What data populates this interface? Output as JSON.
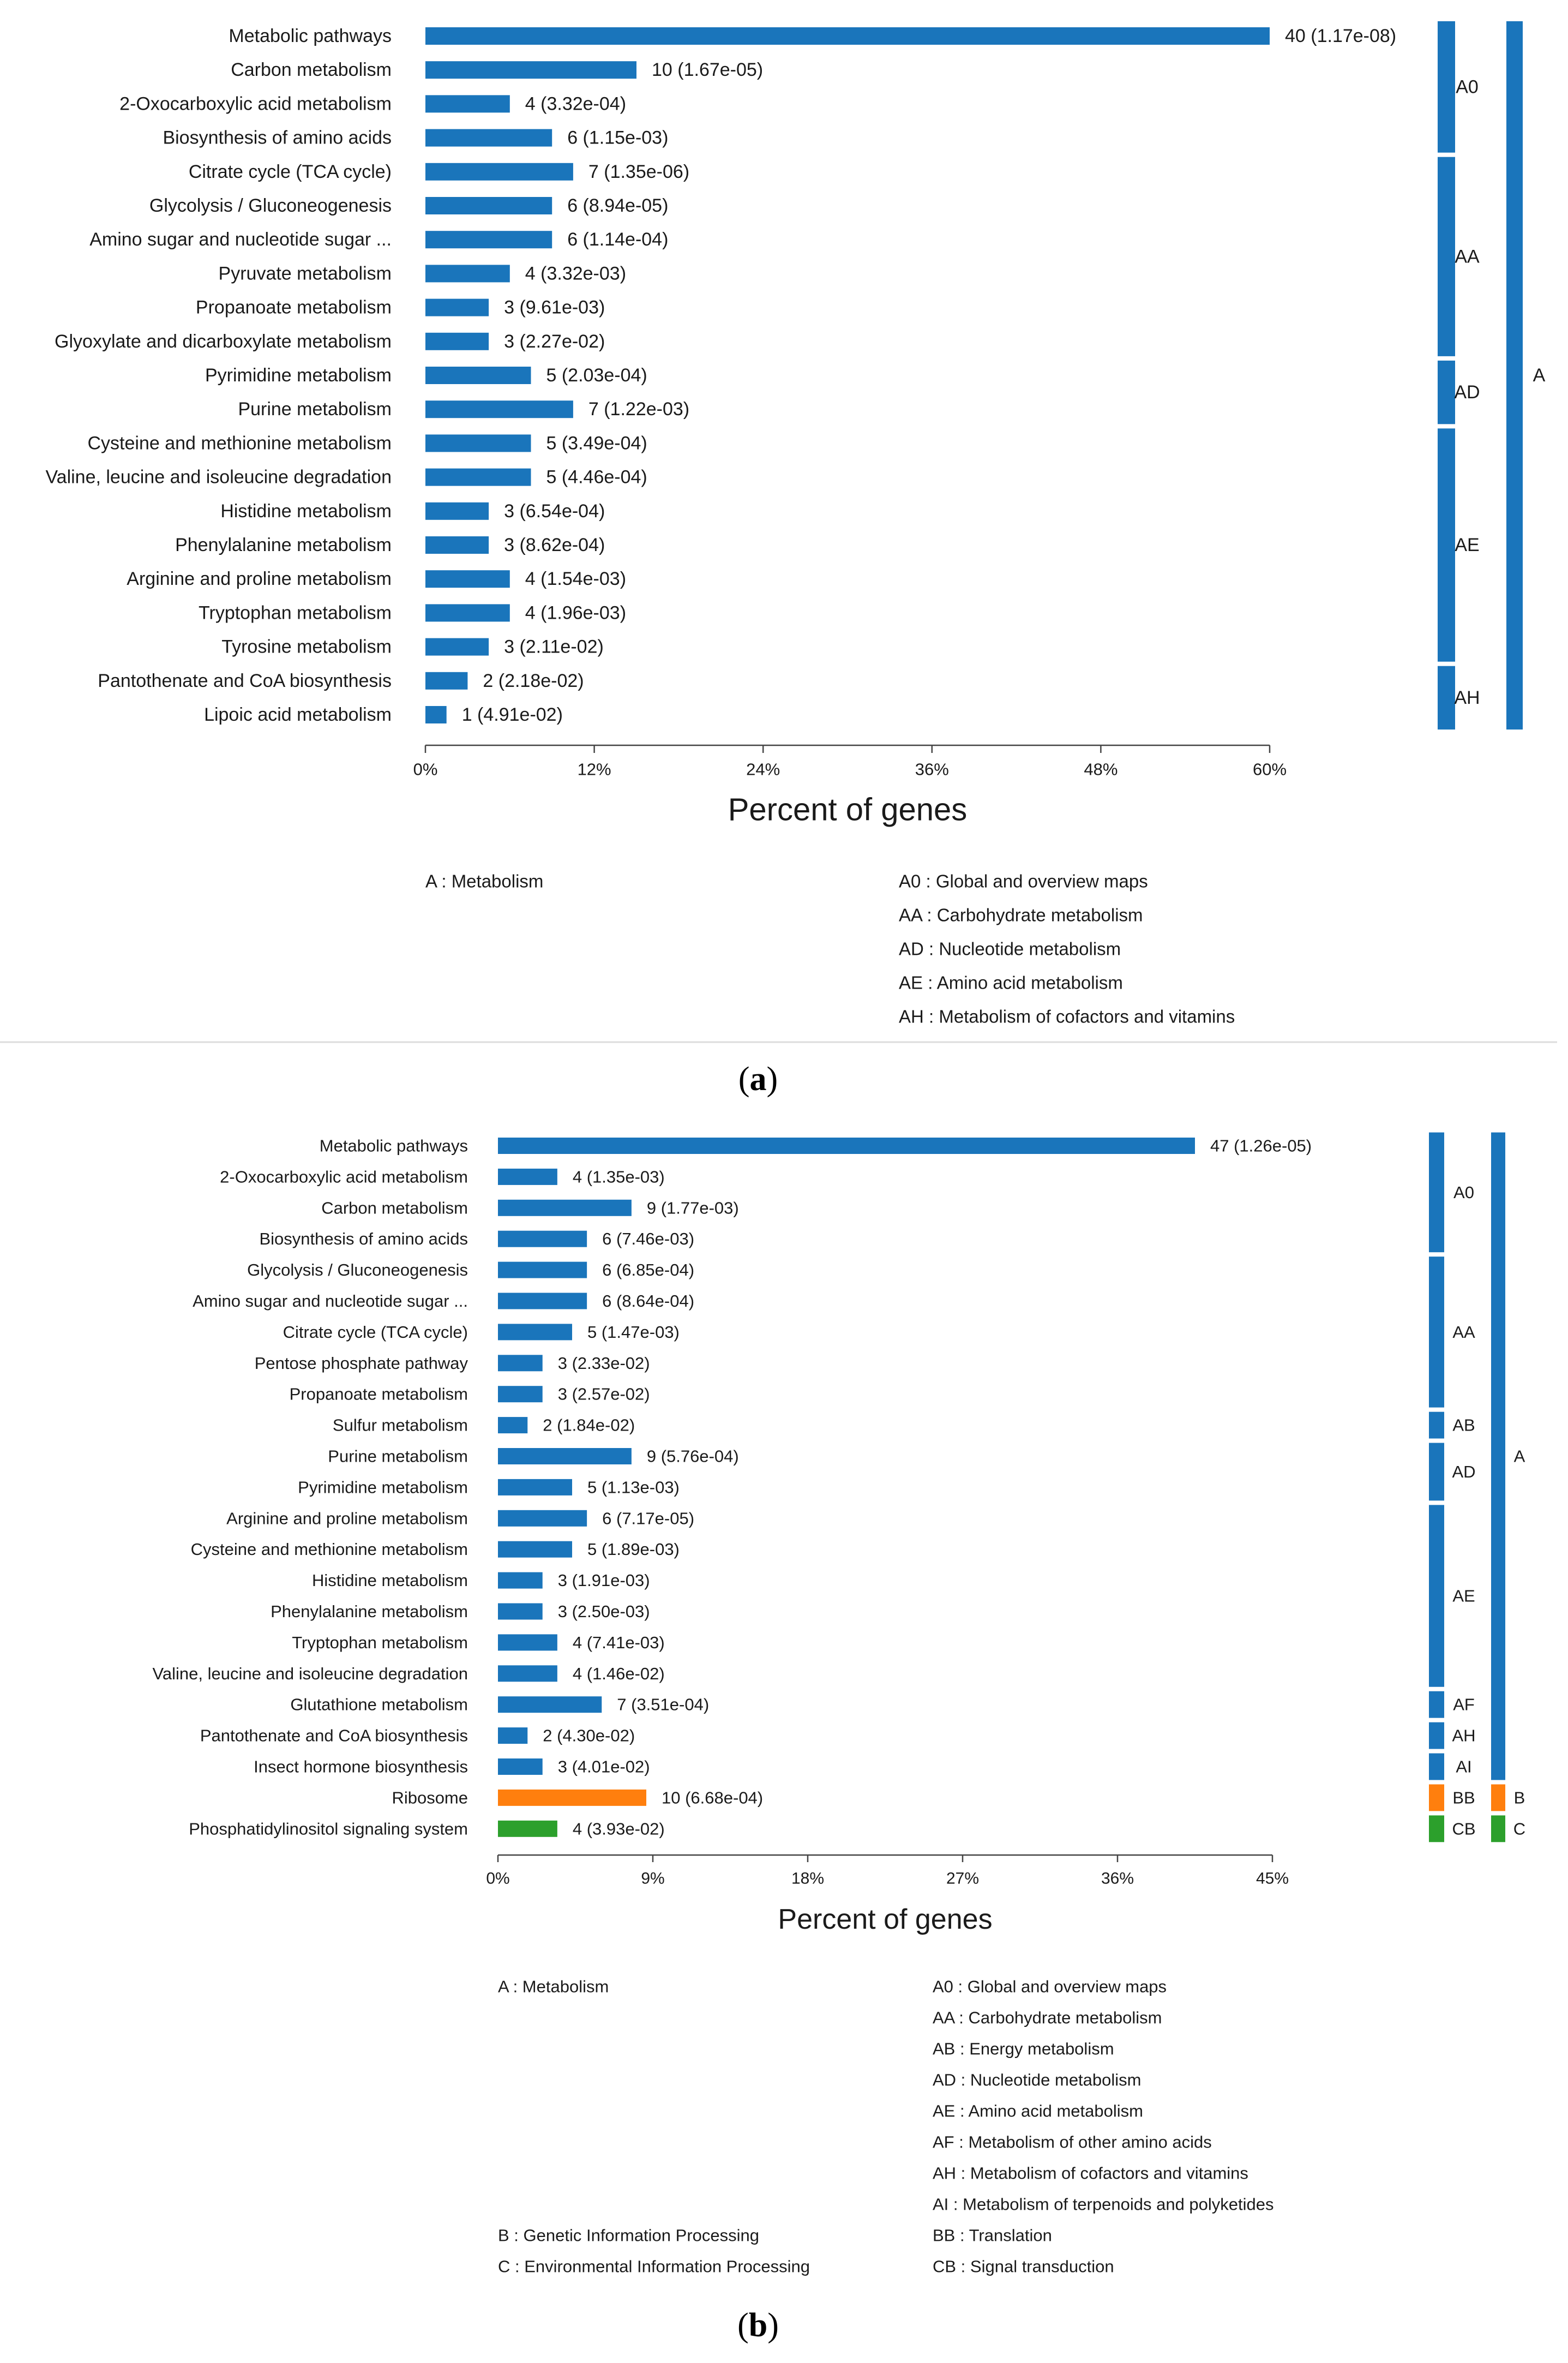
{
  "colors": {
    "blue": "#1a75bb",
    "orange": "#ff7f0e",
    "green": "#2ca02c",
    "text": "#1a1a1a",
    "axis": "#444444",
    "divider": "#dcdcdc"
  },
  "panels": [
    {
      "label": "(a)",
      "label_letter": "a"
    },
    {
      "label": "(b)",
      "label_letter": "b"
    }
  ],
  "chart_data": [
    {
      "type": "bar",
      "orientation": "horizontal",
      "panel": "a",
      "xlabel": "Percent of genes",
      "xlim": [
        0,
        60
      ],
      "xticks": [
        "0%",
        "12%",
        "24%",
        "36%",
        "48%",
        "60%"
      ],
      "categories": [
        "Metabolic pathways",
        "Carbon metabolism",
        "2-Oxocarboxylic acid metabolism",
        "Biosynthesis of amino acids",
        "Citrate cycle (TCA cycle)",
        "Glycolysis / Gluconeogenesis",
        "Amino sugar and nucleotide sugar ...",
        "Pyruvate metabolism",
        "Propanoate metabolism",
        "Glyoxylate and dicarboxylate metabolism",
        "Pyrimidine metabolism",
        "Purine metabolism",
        "Cysteine and methionine metabolism",
        "Valine, leucine and isoleucine degradation",
        "Histidine metabolism",
        "Phenylalanine metabolism",
        "Arginine and proline metabolism",
        "Tryptophan metabolism",
        "Tyrosine metabolism",
        "Pantothenate and CoA biosynthesis",
        "Lipoic acid metabolism"
      ],
      "counts": [
        40,
        10,
        4,
        6,
        7,
        6,
        6,
        4,
        3,
        3,
        5,
        7,
        5,
        5,
        3,
        3,
        4,
        4,
        3,
        2,
        1
      ],
      "values": [
        60.0,
        15.0,
        6.0,
        9.0,
        10.5,
        9.0,
        9.0,
        6.0,
        4.5,
        4.5,
        7.5,
        10.5,
        7.5,
        7.5,
        4.5,
        4.5,
        6.0,
        6.0,
        4.5,
        3.0,
        1.5
      ],
      "bar_labels": [
        "40 (1.17e-08)",
        "10 (1.67e-05)",
        "4 (3.32e-04)",
        "6 (1.15e-03)",
        "7 (1.35e-06)",
        "6 (8.94e-05)",
        "6 (1.14e-04)",
        "4 (3.32e-03)",
        "3 (9.61e-03)",
        "3 (2.27e-02)",
        "5 (2.03e-04)",
        "7 (1.22e-03)",
        "5 (3.49e-04)",
        "5 (4.46e-04)",
        "3 (6.54e-04)",
        "3 (8.62e-04)",
        "4 (1.54e-03)",
        "4 (1.96e-03)",
        "3 (2.11e-02)",
        "2 (2.18e-02)",
        "1 (4.91e-02)"
      ],
      "bar_colors": [
        "blue",
        "blue",
        "blue",
        "blue",
        "blue",
        "blue",
        "blue",
        "blue",
        "blue",
        "blue",
        "blue",
        "blue",
        "blue",
        "blue",
        "blue",
        "blue",
        "blue",
        "blue",
        "blue",
        "blue",
        "blue"
      ],
      "subgroups": [
        {
          "code": "A0",
          "start": 0,
          "end": 3,
          "color": "blue"
        },
        {
          "code": "AA",
          "start": 4,
          "end": 9,
          "color": "blue"
        },
        {
          "code": "AD",
          "start": 10,
          "end": 11,
          "color": "blue"
        },
        {
          "code": "AE",
          "start": 12,
          "end": 18,
          "color": "blue"
        },
        {
          "code": "AH",
          "start": 19,
          "end": 20,
          "color": "blue"
        }
      ],
      "groups": [
        {
          "code": "A",
          "start": 0,
          "end": 20,
          "color": "blue"
        }
      ],
      "legend_left": [
        "A : Metabolism"
      ],
      "legend_right": [
        "A0 : Global and overview maps",
        "AA : Carbohydrate metabolism",
        "AD : Nucleotide metabolism",
        "AE : Amino acid metabolism",
        "AH : Metabolism of cofactors and vitamins"
      ]
    },
    {
      "type": "bar",
      "orientation": "horizontal",
      "panel": "b",
      "xlabel": "Percent of genes",
      "xlim": [
        0,
        45
      ],
      "xticks": [
        "0%",
        "9%",
        "18%",
        "27%",
        "36%",
        "45%"
      ],
      "categories": [
        "Metabolic pathways",
        "2-Oxocarboxylic acid metabolism",
        "Carbon metabolism",
        "Biosynthesis of amino acids",
        "Glycolysis / Gluconeogenesis",
        "Amino sugar and nucleotide sugar ...",
        "Citrate cycle (TCA cycle)",
        "Pentose phosphate pathway",
        "Propanoate metabolism",
        "Sulfur metabolism",
        "Purine metabolism",
        "Pyrimidine metabolism",
        "Arginine and proline metabolism",
        "Cysteine and methionine metabolism",
        "Histidine metabolism",
        "Phenylalanine metabolism",
        "Tryptophan metabolism",
        "Valine, leucine and isoleucine degradation",
        "Glutathione metabolism",
        "Pantothenate and CoA biosynthesis",
        "Insect hormone biosynthesis",
        "Ribosome",
        "Phosphatidylinositol signaling system"
      ],
      "counts": [
        47,
        4,
        9,
        6,
        6,
        6,
        5,
        3,
        3,
        2,
        9,
        5,
        6,
        5,
        3,
        3,
        4,
        4,
        7,
        2,
        3,
        10,
        4
      ],
      "values": [
        40.5,
        3.45,
        7.76,
        5.17,
        5.17,
        5.17,
        4.31,
        2.59,
        2.59,
        1.72,
        7.76,
        4.31,
        5.17,
        4.31,
        2.59,
        2.59,
        3.45,
        3.45,
        6.03,
        1.72,
        2.59,
        8.62,
        3.45
      ],
      "bar_labels": [
        "47 (1.26e-05)",
        "4 (1.35e-03)",
        "9 (1.77e-03)",
        "6 (7.46e-03)",
        "6 (6.85e-04)",
        "6 (8.64e-04)",
        "5 (1.47e-03)",
        "3 (2.33e-02)",
        "3 (2.57e-02)",
        "2 (1.84e-02)",
        "9 (5.76e-04)",
        "5 (1.13e-03)",
        "6 (7.17e-05)",
        "5 (1.89e-03)",
        "3 (1.91e-03)",
        "3 (2.50e-03)",
        "4 (7.41e-03)",
        "4 (1.46e-02)",
        "7 (3.51e-04)",
        "2 (4.30e-02)",
        "3 (4.01e-02)",
        "10 (6.68e-04)",
        "4 (3.93e-02)"
      ],
      "bar_colors": [
        "blue",
        "blue",
        "blue",
        "blue",
        "blue",
        "blue",
        "blue",
        "blue",
        "blue",
        "blue",
        "blue",
        "blue",
        "blue",
        "blue",
        "blue",
        "blue",
        "blue",
        "blue",
        "blue",
        "blue",
        "blue",
        "orange",
        "green"
      ],
      "subgroups": [
        {
          "code": "A0",
          "start": 0,
          "end": 3,
          "color": "blue"
        },
        {
          "code": "AA",
          "start": 4,
          "end": 8,
          "color": "blue"
        },
        {
          "code": "AB",
          "start": 9,
          "end": 9,
          "color": "blue"
        },
        {
          "code": "AD",
          "start": 10,
          "end": 11,
          "color": "blue"
        },
        {
          "code": "AE",
          "start": 12,
          "end": 17,
          "color": "blue"
        },
        {
          "code": "AF",
          "start": 18,
          "end": 18,
          "color": "blue"
        },
        {
          "code": "AH",
          "start": 19,
          "end": 19,
          "color": "blue"
        },
        {
          "code": "AI",
          "start": 20,
          "end": 20,
          "color": "blue"
        },
        {
          "code": "BB",
          "start": 21,
          "end": 21,
          "color": "orange"
        },
        {
          "code": "CB",
          "start": 22,
          "end": 22,
          "color": "green"
        }
      ],
      "groups": [
        {
          "code": "A",
          "start": 0,
          "end": 20,
          "color": "blue"
        },
        {
          "code": "B",
          "start": 21,
          "end": 21,
          "color": "orange"
        },
        {
          "code": "C",
          "start": 22,
          "end": 22,
          "color": "green"
        }
      ],
      "legend_left": [
        "A : Metabolism",
        "B : Genetic Information Processing",
        "C : Environmental Information Processing"
      ],
      "legend_right": [
        "A0 : Global and overview maps",
        "AA : Carbohydrate metabolism",
        "AB : Energy metabolism",
        "AD : Nucleotide metabolism",
        "AE : Amino acid metabolism",
        "AF : Metabolism of other amino acids",
        "AH : Metabolism of cofactors and vitamins",
        "AI : Metabolism of terpenoids and polyketides",
        "BB : Translation",
        "CB : Signal transduction"
      ]
    }
  ]
}
